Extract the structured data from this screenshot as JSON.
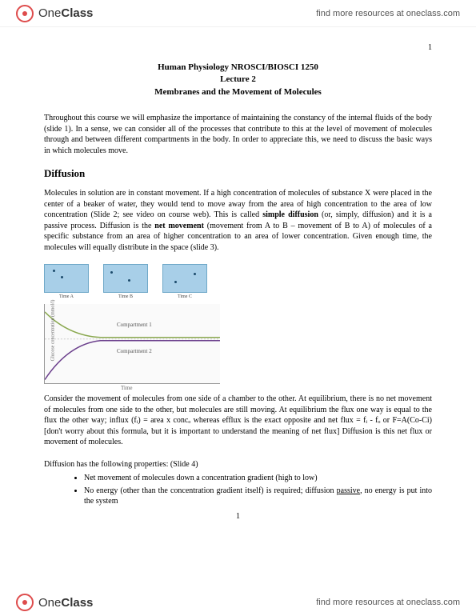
{
  "brand": {
    "one": "One",
    "class": "Class"
  },
  "header_link": "find more resources at oneclass.com",
  "pagenum_top": "1",
  "title": {
    "line1": "Human Physiology NROSCI/BIOSCI 1250",
    "line2": "Lecture 2",
    "line3": "Membranes and the Movement of Molecules"
  },
  "intro": "Throughout this course we will emphasize the importance of maintaining the constancy of the internal fluids of the body (slide 1).  In a sense, we can consider all of the processes that contribute to this at the level of movement of molecules through and between different compartments in the body. In order to appreciate this, we need to discuss the basic ways in which molecules move.",
  "h_diffusion": "Diffusion",
  "diffusion_para": "Molecules in solution are in constant movement.  If a high concentration of molecules of substance X were placed in the center of a beaker of water, they would tend to move away from the area of high concentration to the area of low concentration (Slide 2; see video on course web). This is called <b>simple diffusion</b> (or, simply, diffusion) and it is a passive process.  Diffusion is the <b>net movement</b> (movement from A to B – movement of B to A) of molecules of a specific substance from an area of higher concentration to an area of lower concentration. Given enough time, the molecules will equally distribute in the space (slide 3).",
  "beakers": {
    "l1": "Time A",
    "l2": "Time B",
    "l3": "Time C"
  },
  "chart": {
    "comp1": "Compartment 1",
    "comp2": "Compartment 2",
    "ylabel": "Glucose concentration (mmol/l)",
    "xlabel": "Time",
    "curve1_color": "#8aa84f",
    "curve2_color": "#6b3f8c",
    "bg": "#fafafa",
    "border": "#999999"
  },
  "consider_para": "Consider the movement of molecules from one side of a chamber to the other.  At equilibrium, there is no net movement of molecules from one side to the other, but molecules are still moving. At equilibrium the flux one way is equal to the flux the other way; influx (fᵢ) = area x concₒ whereas efflux is the exact opposite and net flux = fᵢ - fₒ  or F=A(Co-Ci)   [don't worry about this formula, but it is important to understand the meaning of net flux]  Diffusion is this net flux or movement of molecules.",
  "props_intro": "Diffusion has the following properties: (Slide 4)",
  "bullets": [
    "Net movement of  molecules down a concentration gradient (high to low)",
    "No energy (other than the concentration gradient itself) is required; diffusion <u>passive</u>, no energy is put into the system"
  ],
  "pagenum_bottom": "1"
}
